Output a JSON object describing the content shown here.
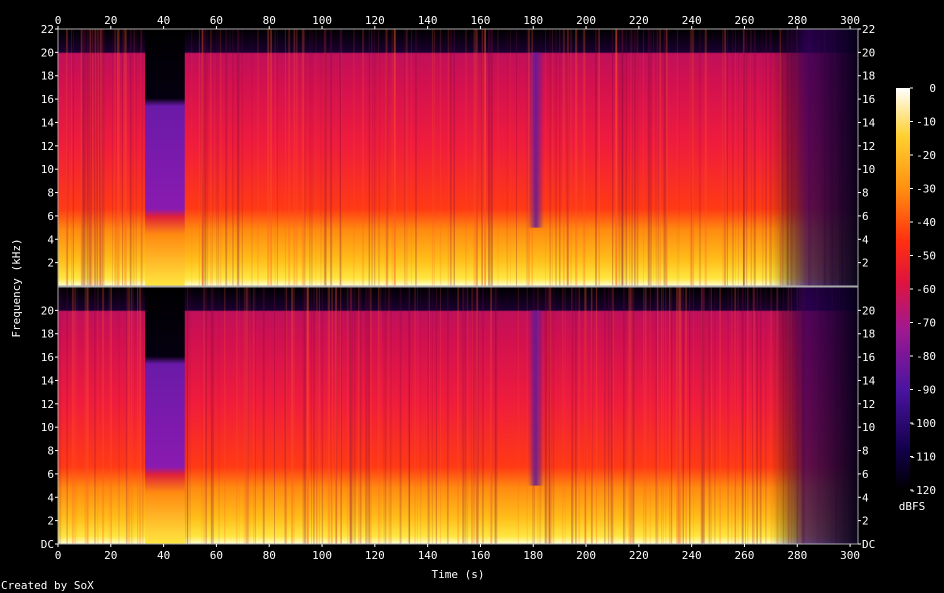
{
  "chart_data": {
    "type": "heatmap",
    "title": "",
    "xlabel": "Time (s)",
    "ylabel": "Frequency (kHz)",
    "xlim": [
      0,
      303
    ],
    "ylim": [
      0,
      22
    ],
    "x_ticks": [
      0,
      20,
      40,
      60,
      80,
      100,
      120,
      140,
      160,
      180,
      200,
      220,
      240,
      260,
      280,
      300
    ],
    "y_ticks_top": [
      "2",
      "4",
      "6",
      "8",
      "10",
      "12",
      "14",
      "16",
      "18",
      "20",
      "22"
    ],
    "y_ticks_bottom": [
      "DC",
      "2",
      "4",
      "6",
      "8",
      "10",
      "12",
      "14",
      "16",
      "18",
      "20"
    ],
    "channels": 2,
    "colorbar": {
      "label": "dBFS",
      "range": [
        -120,
        0
      ],
      "ticks": [
        0,
        -10,
        -20,
        -30,
        -40,
        -50,
        -60,
        -70,
        -80,
        -90,
        -100,
        -110,
        -120
      ]
    },
    "features": {
      "bandwidth_khz": 20,
      "dip_region_s": [
        33,
        48
      ],
      "dip_band_khz": [
        6,
        16
      ],
      "notch_s": 181,
      "fade_out_start_s": 270,
      "end_s": 303
    }
  },
  "footer": {
    "credit": "Created by SoX"
  }
}
